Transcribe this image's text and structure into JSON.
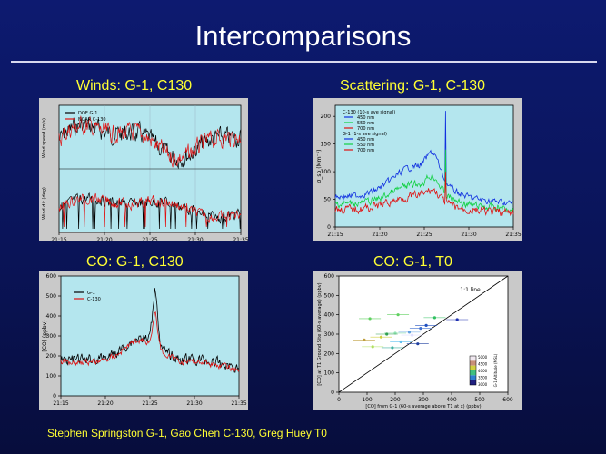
{
  "slide": {
    "title": "Intercomparisons",
    "credit": "Stephen Springston G-1, Gao Chen C-130, Greg Huey T0",
    "colors": {
      "background": "#0a1458",
      "caption": "#ffff33",
      "plot_bg": "#b4e6ee",
      "panel_bg": "#c9c9c9"
    }
  },
  "captions": {
    "winds": "Winds:  G-1, C130",
    "scattering": "Scattering:  G-1, C-130",
    "co_c130": "CO:  G-1, C130",
    "co_t0": "CO:  G-1, T0"
  },
  "chart_data": [
    {
      "id": "winds",
      "type": "line",
      "xlabel": "",
      "ylabel_top": "Wind speed (m/s)",
      "ylabel_bottom": "Wind dir (deg)",
      "x_ticks": [
        "21:15",
        "21:20",
        "21:25",
        "21:30",
        "21:35"
      ],
      "legend": [
        "DOE G-1",
        "NCAR C-130"
      ],
      "series": [
        {
          "name": "DOE G-1",
          "color": "#000000"
        },
        {
          "name": "NCAR C-130",
          "color": "#e01010"
        }
      ],
      "grid": true
    },
    {
      "id": "scattering",
      "type": "line",
      "ylabel": "σ_sp (Mm⁻¹)",
      "x_ticks": [
        "21:15",
        "21:20",
        "21:25",
        "21:30",
        "21:35"
      ],
      "y_ticks": [
        0,
        50,
        100,
        150,
        200
      ],
      "ylim": [
        0,
        220
      ],
      "legend_groups": [
        {
          "label": "C-130 (10-s ave signal)",
          "items": [
            "450 nm",
            "550 nm",
            "700 nm"
          ]
        },
        {
          "label": "G-1 (1-s ave signal)",
          "items": [
            "450 nm",
            "550 nm",
            "700 nm"
          ]
        }
      ],
      "series": [
        {
          "name": "450 nm",
          "color": "#1030e0",
          "base": 55,
          "peak": 210
        },
        {
          "name": "550 nm",
          "color": "#10d040",
          "base": 42,
          "peak": 140
        },
        {
          "name": "700 nm",
          "color": "#e01010",
          "base": 32,
          "peak": 100
        }
      ],
      "grid": true
    },
    {
      "id": "co_c130",
      "type": "line",
      "ylabel": "[CO] (ppbv)",
      "x_ticks": [
        "21:15",
        "21:20",
        "21:25",
        "21:30",
        "21:35"
      ],
      "y_ticks": [
        0,
        100,
        200,
        300,
        400,
        500,
        600
      ],
      "ylim": [
        0,
        600
      ],
      "legend": [
        "G-1",
        "C-130"
      ],
      "series": [
        {
          "name": "G-1",
          "color": "#000000",
          "baseline": 180,
          "peak": 570
        },
        {
          "name": "C-130",
          "color": "#e01010",
          "baseline": 170,
          "peak": 440
        }
      ],
      "grid": true
    },
    {
      "id": "co_t0",
      "type": "scatter",
      "xlabel": "[CO] from G-1 (60-s average above T1 at x) (ppbv)",
      "ylabel": "[CO] at T1 Ground Site (60-s average) (ppbv)",
      "x_ticks": [
        0,
        100,
        200,
        300,
        400,
        500,
        600
      ],
      "y_ticks": [
        0,
        100,
        200,
        300,
        400,
        500,
        600
      ],
      "xlim": [
        0,
        600
      ],
      "ylim": [
        0,
        600
      ],
      "annotation": "1:1 line",
      "colorbar_label": "G-1 Altitude (MSL)",
      "colorbar_ticks": [
        "5000",
        "4500",
        "4000",
        "3500",
        "3000"
      ],
      "points": [
        {
          "x": 420,
          "y": 375,
          "color": "#2030b0"
        },
        {
          "x": 340,
          "y": 385,
          "color": "#30c060"
        },
        {
          "x": 310,
          "y": 345,
          "color": "#2050c0"
        },
        {
          "x": 290,
          "y": 330,
          "color": "#4070d0"
        },
        {
          "x": 250,
          "y": 310,
          "color": "#60a0e0"
        },
        {
          "x": 200,
          "y": 305,
          "color": "#90e0b0"
        },
        {
          "x": 170,
          "y": 300,
          "color": "#30a050"
        },
        {
          "x": 150,
          "y": 285,
          "color": "#d0d040"
        },
        {
          "x": 260,
          "y": 295,
          "color": "#e0e0ff"
        },
        {
          "x": 220,
          "y": 260,
          "color": "#60c0f0"
        },
        {
          "x": 280,
          "y": 250,
          "color": "#2040a0"
        },
        {
          "x": 190,
          "y": 230,
          "color": "#40b0a0"
        },
        {
          "x": 120,
          "y": 235,
          "color": "#b0e060"
        },
        {
          "x": 110,
          "y": 380,
          "color": "#60d060"
        },
        {
          "x": 210,
          "y": 400,
          "color": "#60d060"
        },
        {
          "x": 90,
          "y": 270,
          "color": "#c0a040"
        }
      ],
      "grid": false
    }
  ]
}
